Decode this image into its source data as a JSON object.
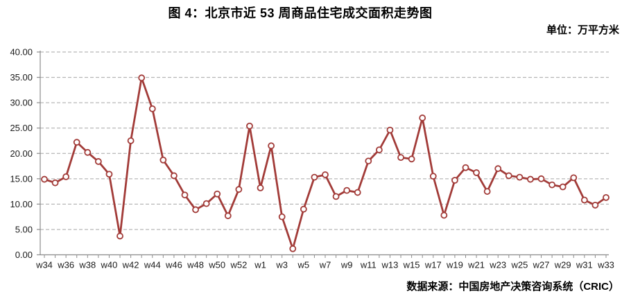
{
  "title": "图 4：北京市近 53 周商品住宅成交面积走势图",
  "unit_label": "单位：万平方米",
  "source_label": "数据来源：中国房地产决策咨询系统（CRIC）",
  "chart_data": {
    "type": "line",
    "title": "图 4：北京市近 53 周商品住宅成交面积走势图",
    "unit": "万平方米",
    "categories": [
      "w34",
      "w35",
      "w36",
      "w37",
      "w38",
      "w39",
      "w40",
      "w41",
      "w42",
      "w43",
      "w44",
      "w45",
      "w46",
      "w47",
      "w48",
      "w49",
      "w50",
      "w51",
      "w52",
      "w53",
      "w1",
      "w2",
      "w3",
      "w4",
      "w5",
      "w6",
      "w7",
      "w8",
      "w9",
      "w10",
      "w11",
      "w12",
      "w13",
      "w14",
      "w15",
      "w16",
      "w17",
      "w18",
      "w19",
      "w20",
      "w21",
      "w22",
      "w23",
      "w24",
      "w25",
      "w26",
      "w27",
      "w28",
      "w29",
      "w30",
      "w31",
      "w32",
      "w33"
    ],
    "values": [
      14.9,
      14.2,
      15.4,
      22.2,
      20.2,
      18.4,
      15.9,
      3.7,
      22.5,
      34.9,
      28.8,
      18.7,
      15.6,
      11.8,
      8.9,
      10.1,
      12.0,
      7.7,
      12.9,
      25.4,
      13.2,
      21.5,
      7.5,
      1.2,
      9.0,
      15.3,
      15.8,
      11.5,
      12.7,
      12.3,
      18.5,
      20.7,
      24.6,
      19.2,
      18.9,
      27.0,
      15.5,
      7.8,
      14.7,
      17.2,
      16.2,
      12.5,
      17.0,
      15.6,
      15.3,
      14.9,
      15.0,
      13.8,
      13.4,
      15.2,
      10.8,
      9.8,
      11.3
    ],
    "x_tick_labels": [
      "w34",
      "w36",
      "w38",
      "w40",
      "w42",
      "w44",
      "w46",
      "w48",
      "w50",
      "w52",
      "w1",
      "w3",
      "w5",
      "w7",
      "w9",
      "w11",
      "w13",
      "w15",
      "w17",
      "w19",
      "w21",
      "w23",
      "w25",
      "w27",
      "w29",
      "w31",
      "w33"
    ],
    "x_tick_label_every": 2,
    "y_tick_labels": [
      "0.00",
      "5.00",
      "10.00",
      "15.00",
      "20.00",
      "25.00",
      "30.00",
      "35.00",
      "40.00"
    ],
    "ylim": [
      0,
      40
    ],
    "y_step": 5,
    "grid": "horizontal-dashed",
    "legend": "none",
    "line_color": "#A23B38",
    "marker": "circle-open",
    "marker_fill": "#FFFFFF",
    "grid_color": "#A6A6A6",
    "axis_color": "#8C8C8C",
    "label_color": "#1A1A1A",
    "background": "#FFFFFF"
  }
}
